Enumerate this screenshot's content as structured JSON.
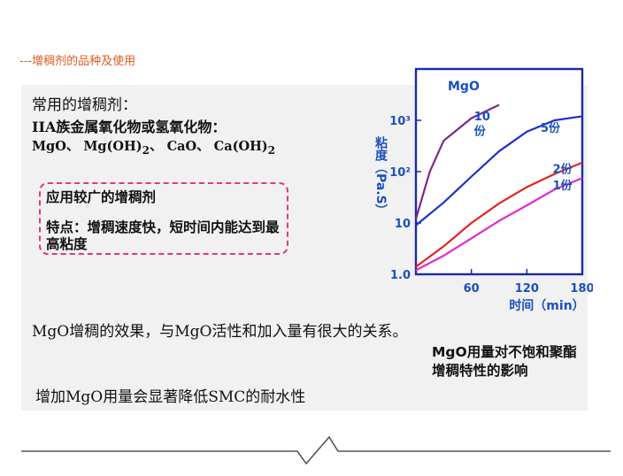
{
  "header": {
    "title": "---增稠剂的品种及使用"
  },
  "text": {
    "line1": "常用的增稠剂：",
    "line2": "IIA族金属氧化物或氢氧化物：",
    "line3_parts": [
      "MgO、 Mg(OH)",
      "2",
      "、 CaO、 Ca(OH)",
      "2"
    ],
    "callout_title": "应用较广的增稠剂",
    "callout_body": "特点：增稠速度快，短时间内能达到最高粘度",
    "effect": "MgO增稠的效果，与MgO活性和加入量有很大的关系。",
    "water": "增加MgO用量会显著降低SMC的耐水性"
  },
  "caption": "MgO用量对不饱和聚酯增稠特性的影响",
  "colors": {
    "header": "#e05a1e",
    "callout_border": "#e23b6b",
    "axis": "#1a2aa8",
    "label": "#1a4fc0"
  },
  "chart_data": {
    "type": "line",
    "title": "MgO",
    "xlabel": "时间（min）",
    "ylabel": "粘度（Pa.S）",
    "x_ticks": [
      "60",
      "120",
      "180"
    ],
    "y_ticks": [
      "1.0",
      "10",
      "10²",
      "10³"
    ],
    "y_scale": "log",
    "xlim": [
      0,
      180
    ],
    "ylim": [
      1,
      10000
    ],
    "series": [
      {
        "name": "10份",
        "color": "#7a2a8c",
        "x": [
          0,
          15,
          30,
          60,
          90
        ],
        "y": [
          12,
          100,
          400,
          1100,
          2000
        ]
      },
      {
        "name": "5份",
        "color": "#1f2fd0",
        "x": [
          0,
          30,
          60,
          90,
          120,
          150,
          180
        ],
        "y": [
          9,
          25,
          80,
          250,
          600,
          1000,
          1200
        ]
      },
      {
        "name": "2份",
        "color": "#e82020",
        "x": [
          0,
          30,
          60,
          90,
          120,
          150,
          180
        ],
        "y": [
          1.4,
          3.5,
          10,
          24,
          50,
          90,
          150
        ]
      },
      {
        "name": "1份",
        "color": "#e02ad0",
        "x": [
          0,
          30,
          60,
          90,
          120,
          150,
          180
        ],
        "y": [
          1.2,
          2.3,
          5,
          11,
          22,
          45,
          75
        ]
      }
    ]
  }
}
